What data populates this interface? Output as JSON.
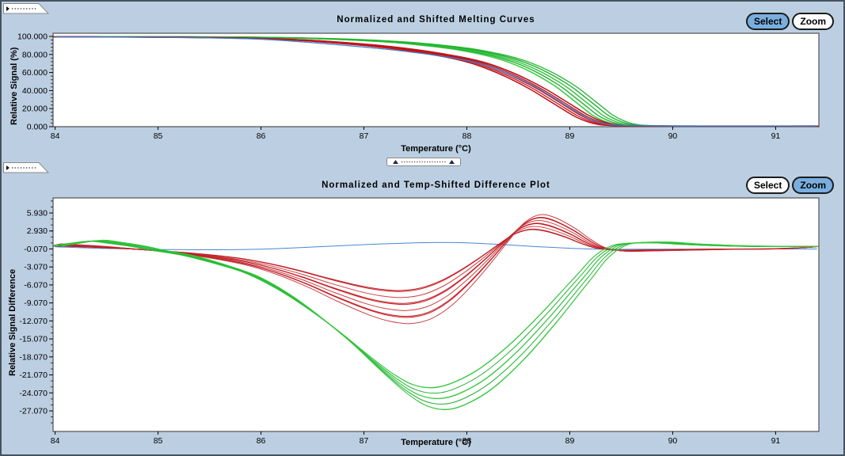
{
  "window": {
    "background": "#bccfe2"
  },
  "panels": [
    {
      "title": "Normalized and Shifted Melting Curves",
      "buttons": {
        "select_label": "Select",
        "zoom_label": "Zoom",
        "active": "select"
      },
      "active_button_color": "#79aede"
    },
    {
      "title": "Normalized and Temp-Shifted Difference Plot",
      "buttons": {
        "select_label": "Select",
        "zoom_label": "Zoom",
        "active": "zoom"
      },
      "active_button_color": "#79aede"
    }
  ],
  "icons": {
    "collapse_handle": "collapse-handle-icon",
    "slider_arrows": "up-triangle-icons"
  },
  "chart_data": [
    {
      "type": "line",
      "title": "Normalized and Shifted Melting Curves",
      "xlabel": "Temperature (°C)",
      "ylabel": "Relative Signal (%)",
      "xlim": [
        83.98,
        91.42
      ],
      "ylim": [
        0,
        103.5
      ],
      "grid": false,
      "legend": "none",
      "xticks": [
        84,
        85,
        86,
        87,
        88,
        89,
        90,
        91
      ],
      "yticks": [
        {
          "value": 100,
          "label": "100.000"
        },
        {
          "value": 80,
          "label": "80.000"
        },
        {
          "value": 60,
          "label": "60.000"
        },
        {
          "value": 40,
          "label": "40.000"
        },
        {
          "value": 20,
          "label": "20.000"
        },
        {
          "value": 0,
          "label": "0.000"
        }
      ],
      "y_minor": {
        "anchor": 0,
        "step": 4,
        "major_every": 20
      },
      "line_width": 1.4,
      "series": [
        {
          "name": "green-genotype-bundle",
          "count": 7,
          "x_spread": 0.1,
          "y_spread": 0,
          "shades": [
            "#22b52f",
            "#3ecf45",
            "#18a82b"
          ],
          "points": [
            [
              84,
              99.6
            ],
            [
              84.5,
              99.7
            ],
            [
              85,
              99.6
            ],
            [
              85.5,
              99.4
            ],
            [
              86,
              98.9
            ],
            [
              86.3,
              98.3
            ],
            [
              86.6,
              97.5
            ],
            [
              87,
              95.8
            ],
            [
              87.3,
              93.8
            ],
            [
              87.6,
              90.8
            ],
            [
              87.9,
              86.8
            ],
            [
              88.1,
              83
            ],
            [
              88.3,
              78
            ],
            [
              88.5,
              71
            ],
            [
              88.7,
              61
            ],
            [
              88.9,
              48
            ],
            [
              89.0,
              40
            ],
            [
              89.1,
              31
            ],
            [
              89.2,
              22
            ],
            [
              89.3,
              13
            ],
            [
              89.4,
              7
            ],
            [
              89.5,
              3.2
            ],
            [
              89.6,
              1.6
            ],
            [
              89.8,
              0.9
            ],
            [
              90,
              0.7
            ],
            [
              90.5,
              0.6
            ],
            [
              91,
              0.6
            ],
            [
              91.4,
              0.6
            ]
          ]
        },
        {
          "name": "red-genotype-bundle",
          "count": 8,
          "x_spread": 0.09,
          "y_spread": 0,
          "shades": [
            "#d01218",
            "#b5171c"
          ],
          "points": [
            [
              84,
              99.5
            ],
            [
              84.5,
              99.4
            ],
            [
              85,
              99.2
            ],
            [
              85.5,
              98.7
            ],
            [
              86,
              97.6
            ],
            [
              86.3,
              96.3
            ],
            [
              86.6,
              94.4
            ],
            [
              87,
              90.8
            ],
            [
              87.3,
              87.2
            ],
            [
              87.6,
              82.5
            ],
            [
              87.9,
              76.5
            ],
            [
              88.1,
              71
            ],
            [
              88.3,
              63
            ],
            [
              88.5,
              53
            ],
            [
              88.7,
              41
            ],
            [
              88.9,
              27
            ],
            [
              89.1,
              13
            ],
            [
              89.2,
              7.5
            ],
            [
              89.3,
              3.8
            ],
            [
              89.4,
              1.8
            ],
            [
              89.6,
              0.8
            ],
            [
              90,
              0.5
            ],
            [
              90.5,
              0.4
            ],
            [
              91,
              0.4
            ],
            [
              91.4,
              0.5
            ]
          ]
        },
        {
          "name": "blue-reference-curve",
          "count": 1,
          "x_spread": 0,
          "y_spread": 0,
          "shades": [
            "#3d7fd0"
          ],
          "points": [
            [
              84,
              99.4
            ],
            [
              84.5,
              99.3
            ],
            [
              85,
              99.0
            ],
            [
              85.5,
              98.4
            ],
            [
              86,
              96.9
            ],
            [
              86.3,
              94.8
            ],
            [
              86.6,
              92.2
            ],
            [
              87,
              88.2
            ],
            [
              87.3,
              84.8
            ],
            [
              87.6,
              80.6
            ],
            [
              87.9,
              75.4
            ],
            [
              88.1,
              70.5
            ],
            [
              88.3,
              63
            ],
            [
              88.5,
              53.5
            ],
            [
              88.7,
              42
            ],
            [
              88.9,
              28
            ],
            [
              89.1,
              14
            ],
            [
              89.2,
              8
            ],
            [
              89.3,
              4.2
            ],
            [
              89.4,
              2.2
            ],
            [
              89.6,
              1.2
            ],
            [
              90,
              0.9
            ],
            [
              90.5,
              0.8
            ],
            [
              91,
              0.8
            ],
            [
              91.4,
              1.0
            ]
          ]
        }
      ]
    },
    {
      "type": "line",
      "title": "Normalized and Temp-Shifted Difference Plot",
      "xlabel": "Temperature (°C)",
      "ylabel": "Relative Signal Difference",
      "xlim": [
        83.98,
        91.42
      ],
      "ylim": [
        -30.5,
        8.44
      ],
      "grid": false,
      "legend": "none",
      "xticks": [
        84,
        85,
        86,
        87,
        88,
        89,
        90,
        91
      ],
      "yticks": [
        {
          "value": 5.93,
          "label": "5.930"
        },
        {
          "value": 2.93,
          "label": "2.930"
        },
        {
          "value": -0.07,
          "label": "-0.070"
        },
        {
          "value": -3.07,
          "label": "-3.070"
        },
        {
          "value": -6.07,
          "label": "-6.070"
        },
        {
          "value": -9.07,
          "label": "-9.070"
        },
        {
          "value": -12.07,
          "label": "-12.070"
        },
        {
          "value": -15.07,
          "label": "-15.070"
        },
        {
          "value": -18.07,
          "label": "-18.070"
        },
        {
          "value": -21.07,
          "label": "-21.070"
        },
        {
          "value": -24.07,
          "label": "-24.070"
        },
        {
          "value": -27.07,
          "label": "-27.070"
        }
      ],
      "y_minor": {
        "anchor": -0.07,
        "step": 1,
        "major_every": 3
      },
      "line_width": 1.0,
      "series": [
        {
          "name": "blue-reference-baseline",
          "count": 1,
          "x_spread": 0,
          "y_spread": 0,
          "shades": [
            "#3d7fd0"
          ],
          "points": [
            [
              84,
              0.3
            ],
            [
              84.5,
              0.0
            ],
            [
              85,
              -0.15
            ],
            [
              85.5,
              -0.2
            ],
            [
              86,
              -0.1
            ],
            [
              86.5,
              0.25
            ],
            [
              87,
              0.65
            ],
            [
              87.5,
              0.95
            ],
            [
              87.9,
              1.0
            ],
            [
              88.3,
              0.7
            ],
            [
              88.7,
              0.3
            ],
            [
              89,
              0.05
            ],
            [
              89.3,
              -0.1
            ],
            [
              89.7,
              -0.12
            ],
            [
              90,
              -0.1
            ],
            [
              90.5,
              -0.08
            ],
            [
              91,
              -0.07
            ],
            [
              91.4,
              -0.07
            ]
          ]
        },
        {
          "name": "red-genotype-bundle",
          "count": 9,
          "x_spread": 0.05,
          "y_spread": 0.3,
          "shades": [
            "#d01218",
            "#b5171c",
            "#c9363c"
          ],
          "points": [
            [
              84,
              0.6
            ],
            [
              84.3,
              0.4
            ],
            [
              84.6,
              0.1
            ],
            [
              85,
              -0.4
            ],
            [
              85.4,
              -1.1
            ],
            [
              85.8,
              -2.1
            ],
            [
              86.1,
              -3.3
            ],
            [
              86.4,
              -4.9
            ],
            [
              86.7,
              -6.8
            ],
            [
              87,
              -8.5
            ],
            [
              87.2,
              -9.3
            ],
            [
              87.4,
              -9.6
            ],
            [
              87.6,
              -9.0
            ],
            [
              87.8,
              -7.3
            ],
            [
              88,
              -4.7
            ],
            [
              88.2,
              -1.6
            ],
            [
              88.35,
              0.9
            ],
            [
              88.5,
              3.2
            ],
            [
              88.65,
              4.3
            ],
            [
              88.8,
              4.0
            ],
            [
              89,
              2.6
            ],
            [
              89.15,
              1.2
            ],
            [
              89.3,
              0.1
            ],
            [
              89.5,
              -0.35
            ],
            [
              89.8,
              -0.3
            ],
            [
              90.2,
              -0.2
            ],
            [
              90.6,
              -0.1
            ],
            [
              91,
              -0.05
            ],
            [
              91.25,
              0.15
            ],
            [
              91.4,
              0.3
            ]
          ]
        },
        {
          "name": "green-genotype-bundle",
          "count": 8,
          "x_spread": 0.08,
          "y_spread": 0.085,
          "shades": [
            "#22b52f",
            "#3ecf45",
            "#18a82b"
          ],
          "points": [
            [
              84,
              0.4
            ],
            [
              84.2,
              0.9
            ],
            [
              84.4,
              1.3
            ],
            [
              84.6,
              0.9
            ],
            [
              84.8,
              0.4
            ],
            [
              85,
              -0.3
            ],
            [
              85.3,
              -1.2
            ],
            [
              85.6,
              -2.6
            ],
            [
              85.9,
              -4.3
            ],
            [
              86.2,
              -7
            ],
            [
              86.5,
              -10.5
            ],
            [
              86.8,
              -14.5
            ],
            [
              87.1,
              -19
            ],
            [
              87.35,
              -22.5
            ],
            [
              87.55,
              -24.5
            ],
            [
              87.75,
              -25
            ],
            [
              87.95,
              -24
            ],
            [
              88.2,
              -21.5
            ],
            [
              88.5,
              -17
            ],
            [
              88.8,
              -11.5
            ],
            [
              89,
              -7.5
            ],
            [
              89.15,
              -4.5
            ],
            [
              89.3,
              -1.5
            ],
            [
              89.45,
              0.3
            ],
            [
              89.6,
              0.9
            ],
            [
              89.9,
              1.0
            ],
            [
              90.2,
              0.7
            ],
            [
              90.6,
              0.45
            ],
            [
              91,
              0.35
            ],
            [
              91.4,
              0.35
            ]
          ]
        }
      ]
    }
  ]
}
